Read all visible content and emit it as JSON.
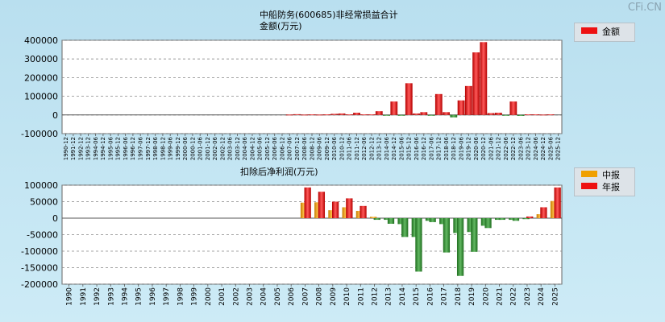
{
  "watermark": "CFi.CN",
  "chart_data": [
    {
      "type": "bar",
      "title": "中船防务(600685)非经常损益合计",
      "subtitle": "金额(万元)",
      "legend": [
        {
          "label": "金额",
          "color": "#ee1111"
        }
      ],
      "ylim": [
        -100000,
        400000
      ],
      "yticks": [
        400000,
        300000,
        200000,
        100000,
        0,
        -100000
      ],
      "ytick_labels": [
        "400000",
        "300000",
        "200000",
        "100000",
        "0",
        "-100000"
      ],
      "categories": [
        "1990-12",
        "1991-12",
        "1992-12",
        "1993-12",
        "1994-06",
        "1994-12",
        "1995-06",
        "1995-12",
        "1996-06",
        "1996-12",
        "1997-06",
        "1997-12",
        "1998-06",
        "1998-12",
        "1999-06",
        "1999-12",
        "2000-06",
        "2000-12",
        "2001-06",
        "2001-12",
        "2002-06",
        "2002-12",
        "2003-06",
        "2003-12",
        "2004-06",
        "2004-12",
        "2005-06",
        "2005-12",
        "2006-06",
        "2006-12",
        "2007-06",
        "2007-12",
        "2008-06",
        "2008-12",
        "2009-06",
        "2009-12",
        "2010-06",
        "2010-12",
        "2011-06",
        "2011-12",
        "2012-06",
        "2012-12",
        "2013-12",
        "2014-06",
        "2014-12",
        "2015-06",
        "2015-12",
        "2016-06",
        "2016-12",
        "2017-06",
        "2017-12",
        "2018-06",
        "2018-12",
        "2019-06",
        "2019-12",
        "2020-06",
        "2020-12",
        "2021-06",
        "2021-12",
        "2022-06",
        "2022-12",
        "2023-06",
        "2023-12",
        "2024-06",
        "2024-12",
        "2025-06",
        "2025-12"
      ],
      "values": [
        0,
        0,
        0,
        0,
        0,
        0,
        0,
        0,
        0,
        0,
        0,
        0,
        0,
        0,
        0,
        0,
        0,
        0,
        0,
        0,
        0,
        0,
        0,
        0,
        0,
        0,
        0,
        0,
        0,
        0,
        2000,
        4000,
        2000,
        3000,
        2000,
        3000,
        6000,
        8000,
        3000,
        12000,
        3000,
        3000,
        20000,
        -3000,
        72000,
        -3000,
        170000,
        8000,
        15000,
        -3000,
        112000,
        15000,
        -13000,
        78000,
        155000,
        335000,
        390000,
        10000,
        12000,
        -3000,
        72000,
        -5000,
        3000,
        3000,
        2000,
        3000,
        0
      ]
    },
    {
      "type": "bar",
      "title": "扣除后净利润(万元)",
      "legend": [
        {
          "label": "中报",
          "color": "#f0a000"
        },
        {
          "label": "年报",
          "color": "#ee1111"
        }
      ],
      "ylim": [
        -200000,
        100000
      ],
      "yticks": [
        100000,
        50000,
        0,
        -50000,
        -100000,
        -150000,
        -200000
      ],
      "ytick_labels": [
        "100000",
        "50000",
        "0",
        "-50000",
        "-100000",
        "-150000",
        "-200000"
      ],
      "categories": [
        "1990",
        "1991",
        "1992",
        "1993",
        "1994",
        "1995",
        "1996",
        "1997",
        "1998",
        "1999",
        "2000",
        "2001",
        "2002",
        "2003",
        "2004",
        "2005",
        "2006",
        "2007",
        "2008",
        "2009",
        "2010",
        "2011",
        "2012",
        "2013",
        "2014",
        "2015",
        "2016",
        "2017",
        "2018",
        "2019",
        "2020",
        "2021",
        "2022",
        "2023",
        "2024",
        "2025"
      ],
      "series": [
        {
          "name": "中报",
          "values": [
            0,
            0,
            0,
            0,
            0,
            0,
            0,
            0,
            0,
            0,
            0,
            0,
            0,
            0,
            0,
            0,
            0,
            47000,
            48000,
            24000,
            33000,
            22000,
            4000,
            -5000,
            -18000,
            -57000,
            -8000,
            -18000,
            -45000,
            -42000,
            -23000,
            -5000,
            -5000,
            -3000,
            12000,
            52000
          ]
        },
        {
          "name": "年报",
          "values": [
            0,
            0,
            0,
            0,
            0,
            0,
            0,
            0,
            0,
            0,
            0,
            0,
            0,
            0,
            0,
            0,
            0,
            93000,
            80000,
            50000,
            60000,
            37000,
            -5000,
            -17000,
            -57000,
            -162000,
            -12000,
            -104000,
            -175000,
            -102000,
            -30000,
            -5000,
            -8000,
            5000,
            33000,
            93000
          ]
        }
      ]
    }
  ]
}
